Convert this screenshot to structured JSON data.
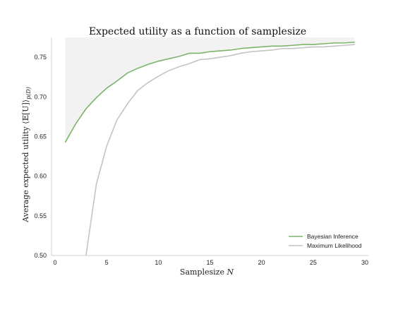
{
  "chart_data": {
    "type": "line",
    "title": "Expected utility as a function of samplesize",
    "xlabel": "Samplesize",
    "xlabel_var": "N",
    "ylabel": "Average expected utility ⟨𝔼[U]⟩",
    "ylabel_sub": "p(D)",
    "xlim": [
      0,
      30
    ],
    "ylim": [
      0.5,
      0.775
    ],
    "xticks": [
      "0",
      "5",
      "10",
      "15",
      "20",
      "25",
      "30"
    ],
    "yticks": [
      "0.50",
      "0.55",
      "0.60",
      "0.65",
      "0.70",
      "0.75"
    ],
    "grid": false,
    "legend_position": "lower-right",
    "shaded_region": {
      "x_range": [
        1,
        29
      ],
      "y_top": 0.775,
      "bounded_below_by": "Bayesian Inference",
      "color": "#f2f2f2"
    },
    "series": [
      {
        "name": "Bayesian Inference",
        "color": "#7bb46a",
        "x": [
          1,
          2,
          3,
          4,
          5,
          6,
          7,
          8,
          9,
          10,
          11,
          12,
          13,
          14,
          15,
          16,
          17,
          18,
          19,
          20,
          21,
          22,
          23,
          24,
          25,
          26,
          27,
          28,
          29
        ],
        "y": [
          0.643,
          0.666,
          0.685,
          0.699,
          0.711,
          0.72,
          0.73,
          0.736,
          0.741,
          0.745,
          0.748,
          0.751,
          0.755,
          0.755,
          0.757,
          0.758,
          0.759,
          0.761,
          0.762,
          0.763,
          0.764,
          0.764,
          0.765,
          0.766,
          0.766,
          0.767,
          0.768,
          0.768,
          0.769
        ]
      },
      {
        "name": "Maximum Likelihood",
        "color": "#c4c4c4",
        "x": [
          3,
          4,
          5,
          6,
          7,
          8,
          9,
          10,
          11,
          12,
          13,
          14,
          15,
          16,
          17,
          18,
          19,
          20,
          21,
          22,
          23,
          24,
          25,
          26,
          27,
          28,
          29
        ],
        "y": [
          0.5,
          0.59,
          0.638,
          0.671,
          0.691,
          0.708,
          0.718,
          0.726,
          0.733,
          0.738,
          0.742,
          0.747,
          0.748,
          0.75,
          0.752,
          0.755,
          0.757,
          0.758,
          0.759,
          0.761,
          0.761,
          0.762,
          0.763,
          0.763,
          0.764,
          0.765,
          0.766
        ]
      }
    ]
  }
}
